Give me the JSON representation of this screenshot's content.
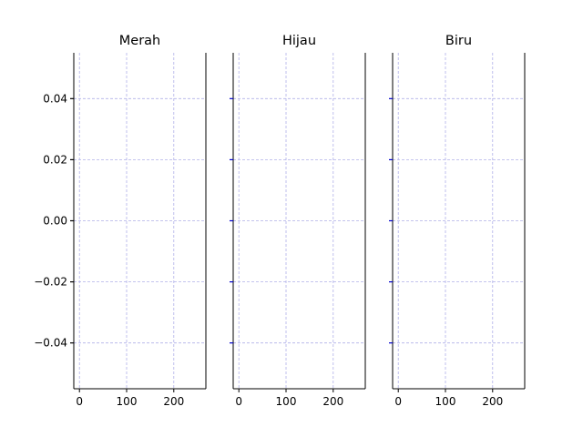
{
  "chart_data": [
    {
      "type": "line",
      "title": "Merah",
      "xlim": [
        -12,
        268
      ],
      "ylim": [
        -0.055,
        0.055
      ],
      "xticks": [
        0,
        100,
        200
      ],
      "yticks": [
        -0.04,
        -0.02,
        0.0,
        0.02,
        0.04
      ],
      "xtick_labels": [
        "0",
        "100",
        "200"
      ],
      "ytick_labels": [
        "−0.04",
        "−0.02",
        "0.00",
        "0.02",
        "0.04"
      ],
      "show_ytick_labels": true,
      "ytick_color": "#000000",
      "grid": true,
      "series": []
    },
    {
      "type": "line",
      "title": "Hijau",
      "xlim": [
        -12,
        268
      ],
      "ylim": [
        -0.055,
        0.055
      ],
      "xticks": [
        0,
        100,
        200
      ],
      "yticks": [
        -0.04,
        -0.02,
        0.0,
        0.02,
        0.04
      ],
      "xtick_labels": [
        "0",
        "100",
        "200"
      ],
      "ytick_labels": [],
      "show_ytick_labels": false,
      "ytick_color": "#0000cc",
      "grid": true,
      "series": []
    },
    {
      "type": "line",
      "title": "Biru",
      "xlim": [
        -12,
        268
      ],
      "ylim": [
        -0.055,
        0.055
      ],
      "xticks": [
        0,
        100,
        200
      ],
      "yticks": [
        -0.04,
        -0.02,
        0.0,
        0.02,
        0.04
      ],
      "xtick_labels": [
        "0",
        "100",
        "200"
      ],
      "ytick_labels": [],
      "show_ytick_labels": false,
      "ytick_color": "#0000cc",
      "grid": true,
      "series": []
    }
  ],
  "style": {
    "grid_color": "#b0b0e8",
    "axis_color": "#000000",
    "text_color": "#000000"
  }
}
